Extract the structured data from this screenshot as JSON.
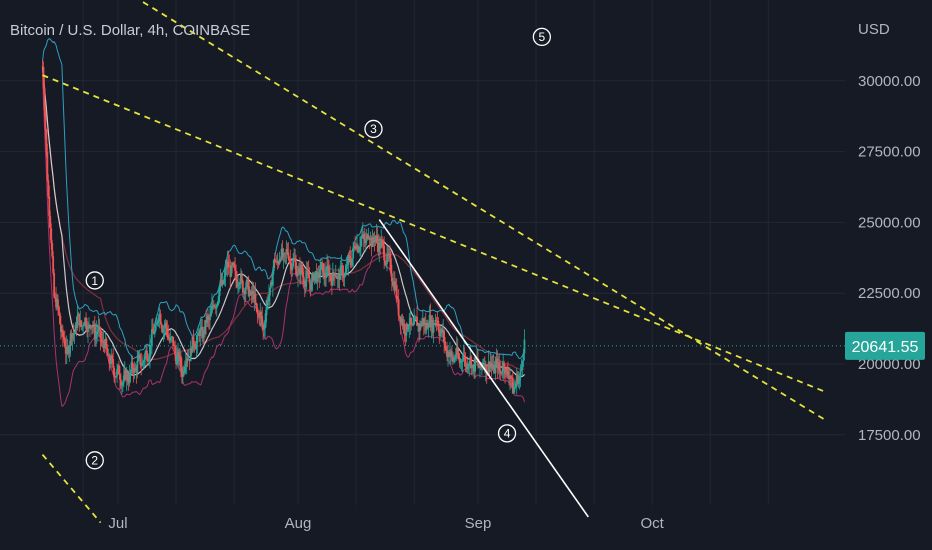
{
  "header": {
    "title": "Bitcoin / U.S. Dollar, 4h, COINBASE"
  },
  "colors": {
    "background": "#161a25",
    "grid": "#232733",
    "candle_up": "#26a69a",
    "candle_down": "#ef5350",
    "upper_band": "#2e9fc0",
    "lower_band": "#a8326f",
    "basis": "#e8e8e8",
    "moving_average": "#7a2f3a",
    "trendline_dashed": "#e6e33c",
    "trendline_solid": "#ffffff",
    "last_price_tag": "#26a69a"
  },
  "chart_data": {
    "type": "candlestick",
    "title": "Bitcoin / U.S. Dollar, 4h, COINBASE",
    "currency_label": "USD",
    "price_ticks": [
      "30000.00",
      "27500.00",
      "25000.00",
      "22500.00",
      "17500.00"
    ],
    "partial_tick": "20000.00",
    "time_ticks": [
      "Jul",
      "Aug",
      "Sep",
      "Oct"
    ],
    "last_price": {
      "label": "20641.55",
      "value": 20641.55
    },
    "grid": true,
    "price_path": [
      [
        "Jun 18",
        30500
      ],
      [
        "Jun 19",
        26000
      ],
      [
        "Jun 20",
        22500
      ],
      [
        "Jun 21",
        21500
      ],
      [
        "Jun 22",
        20400
      ],
      [
        "Jun 24",
        21500
      ],
      [
        "Jun 26",
        21400
      ],
      [
        "Jun 28",
        21000
      ],
      [
        "Jun 30",
        19900
      ],
      [
        "Jul 2",
        19400
      ],
      [
        "Jul 4",
        19900
      ],
      [
        "Jul 6",
        20300
      ],
      [
        "Jul 8",
        21700
      ],
      [
        "Jul 10",
        20900
      ],
      [
        "Jul 12",
        19800
      ],
      [
        "Jul 14",
        20700
      ],
      [
        "Jul 16",
        21300
      ],
      [
        "Jul 18",
        22300
      ],
      [
        "Jul 20",
        23500
      ],
      [
        "Jul 22",
        22900
      ],
      [
        "Jul 24",
        22500
      ],
      [
        "Jul 26",
        21300
      ],
      [
        "Jul 28",
        23600
      ],
      [
        "Jul 30",
        23900
      ],
      [
        "Aug 1",
        23300
      ],
      [
        "Aug 3",
        22900
      ],
      [
        "Aug 5",
        23300
      ],
      [
        "Aug 7",
        23100
      ],
      [
        "Aug 9",
        23200
      ],
      [
        "Aug 11",
        24200
      ],
      [
        "Aug 13",
        24500
      ],
      [
        "Aug 15",
        24300
      ],
      [
        "Aug 17",
        23400
      ],
      [
        "Aug 19",
        21300
      ],
      [
        "Aug 21",
        21400
      ],
      [
        "Aug 23",
        21400
      ],
      [
        "Aug 25",
        21500
      ],
      [
        "Aug 27",
        20300
      ],
      [
        "Aug 29",
        20200
      ],
      [
        "Aug 31",
        20000
      ],
      [
        "Sep 2",
        19950
      ],
      [
        "Sep 4",
        19900
      ],
      [
        "Sep 6",
        19800
      ],
      [
        "Sep 7",
        19200
      ],
      [
        "Sep 8",
        19400
      ],
      [
        "Sep 9",
        20641
      ]
    ],
    "trendlines": [
      {
        "style": "dashed",
        "from": [
          "Jun 18",
          30200
        ],
        "to": [
          "Oct 31",
          19000
        ]
      },
      {
        "style": "dashed",
        "from": [
          "Jun 24",
          34200
        ],
        "to": [
          "Oct 31",
          18000
        ]
      },
      {
        "style": "dashed",
        "from": [
          "Jun 18",
          16800
        ],
        "to": [
          "Jun 28",
          14400
        ]
      },
      {
        "style": "solid",
        "from": [
          "Aug 15",
          25100
        ],
        "to": [
          "Sep 20",
          14600
        ]
      }
    ],
    "wave_labels": [
      {
        "label": "1",
        "at": [
          "Jun 27",
          22950
        ]
      },
      {
        "label": "2",
        "at": [
          "Jun 27",
          16600
        ]
      },
      {
        "label": "3",
        "at": [
          "Aug 14",
          28300
        ]
      },
      {
        "label": "4",
        "at": [
          "Sep 6",
          17550
        ]
      },
      {
        "label": "5",
        "at": [
          "Sep 12",
          31550
        ]
      }
    ]
  }
}
